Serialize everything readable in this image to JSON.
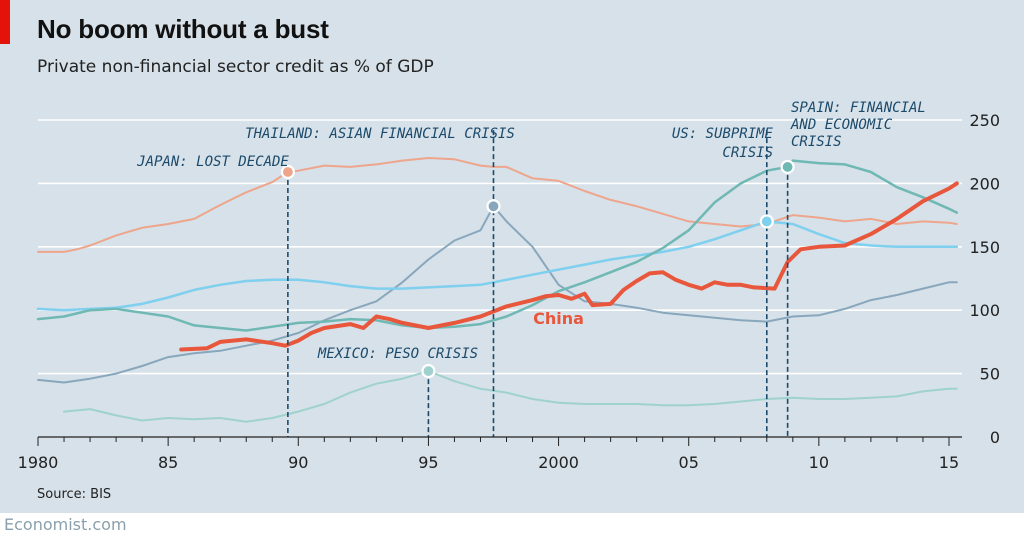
{
  "header": {
    "title": "No boom without a bust",
    "subtitle": "Private non-financial sector credit as % of GDP"
  },
  "footer": {
    "source": "Source: BIS",
    "brand": "Economist.com"
  },
  "colors": {
    "background": "#d6e1e9",
    "accent_red": "#e3120b",
    "china": "#e8563c",
    "japan": "#eea58c",
    "thailand": "#88a7bc",
    "us": "#7fcfee",
    "spain": "#6fb8b4",
    "mexico": "#9fd2ce",
    "annotation": "#1c4a6b",
    "grid": "#ffffff"
  },
  "chart_data": {
    "type": "line",
    "xlim": [
      1980,
      2015.5
    ],
    "ylim": [
      0,
      250
    ],
    "x_ticks": [
      1980,
      1985,
      1990,
      1995,
      2000,
      2005,
      2010,
      2015
    ],
    "x_tick_labels": [
      "1980",
      "85",
      "90",
      "95",
      "2000",
      "05",
      "10",
      "15"
    ],
    "y_ticks": [
      0,
      50,
      100,
      150,
      200,
      250
    ],
    "y_tick_labels": [
      "0",
      "50",
      "100",
      "150",
      "200",
      "250"
    ],
    "y_axis_side": "right",
    "grid": true,
    "series": [
      {
        "name": "China",
        "color_key": "china",
        "width": 4,
        "label": "China",
        "label_at": [
          2000,
          89
        ],
        "points": [
          [
            1985.5,
            69
          ],
          [
            1986.5,
            70
          ],
          [
            1987,
            75
          ],
          [
            1988,
            77
          ],
          [
            1989,
            74
          ],
          [
            1989.5,
            72
          ],
          [
            1990,
            76
          ],
          [
            1990.5,
            82
          ],
          [
            1991,
            86
          ],
          [
            1992,
            89
          ],
          [
            1992.5,
            86
          ],
          [
            1993,
            95
          ],
          [
            1993.5,
            93
          ],
          [
            1994,
            90
          ],
          [
            1995,
            86
          ],
          [
            1996,
            90
          ],
          [
            1997,
            95
          ],
          [
            1998,
            103
          ],
          [
            1999,
            108
          ],
          [
            1999.5,
            111
          ],
          [
            2000,
            112
          ],
          [
            2000.5,
            109
          ],
          [
            2001,
            113
          ],
          [
            2001.3,
            104
          ],
          [
            2002,
            105
          ],
          [
            2002.5,
            116
          ],
          [
            2003,
            123
          ],
          [
            2003.5,
            129
          ],
          [
            2004,
            130
          ],
          [
            2004.5,
            124
          ],
          [
            2005,
            120
          ],
          [
            2005.5,
            117
          ],
          [
            2006,
            122
          ],
          [
            2006.5,
            120
          ],
          [
            2007,
            120
          ],
          [
            2007.5,
            118
          ],
          [
            2008.3,
            117
          ],
          [
            2008.8,
            138
          ],
          [
            2009.3,
            148
          ],
          [
            2010,
            150
          ],
          [
            2011,
            151
          ],
          [
            2012,
            160
          ],
          [
            2013,
            172
          ],
          [
            2014,
            186
          ],
          [
            2015,
            196
          ],
          [
            2015.3,
            200
          ]
        ]
      },
      {
        "name": "Japan",
        "color_key": "japan",
        "width": 2,
        "points": [
          [
            1980,
            146
          ],
          [
            1981,
            146
          ],
          [
            1981.5,
            148
          ],
          [
            1982,
            151
          ],
          [
            1983,
            159
          ],
          [
            1984,
            165
          ],
          [
            1985,
            168
          ],
          [
            1986,
            172
          ],
          [
            1987,
            183
          ],
          [
            1988,
            193
          ],
          [
            1989,
            201
          ],
          [
            1989.6,
            209
          ],
          [
            1990,
            210
          ],
          [
            1991,
            214
          ],
          [
            1992,
            213
          ],
          [
            1993,
            215
          ],
          [
            1994,
            218
          ],
          [
            1995,
            220
          ],
          [
            1996,
            219
          ],
          [
            1997,
            214
          ],
          [
            1997.5,
            213
          ],
          [
            1998,
            213
          ],
          [
            1999,
            204
          ],
          [
            2000,
            202
          ],
          [
            2001,
            194
          ],
          [
            2002,
            187
          ],
          [
            2003,
            182
          ],
          [
            2004,
            176
          ],
          [
            2005,
            170
          ],
          [
            2006,
            168
          ],
          [
            2007,
            166
          ],
          [
            2008,
            168
          ],
          [
            2009,
            175
          ],
          [
            2010,
            173
          ],
          [
            2011,
            170
          ],
          [
            2012,
            172
          ],
          [
            2013,
            168
          ],
          [
            2014,
            170
          ],
          [
            2015,
            169
          ],
          [
            2015.3,
            168
          ]
        ]
      },
      {
        "name": "Thailand",
        "color_key": "thailand",
        "width": 2,
        "points": [
          [
            1980,
            45
          ],
          [
            1981,
            43
          ],
          [
            1982,
            46
          ],
          [
            1983,
            50
          ],
          [
            1984,
            56
          ],
          [
            1985,
            63
          ],
          [
            1986,
            66
          ],
          [
            1987,
            68
          ],
          [
            1988,
            72
          ],
          [
            1989,
            76
          ],
          [
            1990,
            82
          ],
          [
            1991,
            92
          ],
          [
            1992,
            100
          ],
          [
            1993,
            107
          ],
          [
            1994,
            122
          ],
          [
            1995,
            140
          ],
          [
            1996,
            155
          ],
          [
            1997,
            163
          ],
          [
            1997.5,
            182
          ],
          [
            1998,
            170
          ],
          [
            1999,
            150
          ],
          [
            2000,
            120
          ],
          [
            2001,
            107
          ],
          [
            2002,
            105
          ],
          [
            2003,
            102
          ],
          [
            2004,
            98
          ],
          [
            2005,
            96
          ],
          [
            2006,
            94
          ],
          [
            2007,
            92
          ],
          [
            2008,
            91
          ],
          [
            2009,
            95
          ],
          [
            2010,
            96
          ],
          [
            2011,
            101
          ],
          [
            2012,
            108
          ],
          [
            2013,
            112
          ],
          [
            2014,
            117
          ],
          [
            2015,
            122
          ],
          [
            2015.3,
            122
          ]
        ]
      },
      {
        "name": "US",
        "color_key": "us",
        "width": 2.5,
        "points": [
          [
            1980,
            101
          ],
          [
            1981,
            100
          ],
          [
            1982,
            101
          ],
          [
            1983,
            102
          ],
          [
            1984,
            105
          ],
          [
            1985,
            110
          ],
          [
            1986,
            116
          ],
          [
            1987,
            120
          ],
          [
            1988,
            123
          ],
          [
            1989,
            124
          ],
          [
            1990,
            124
          ],
          [
            1991,
            122
          ],
          [
            1992,
            119
          ],
          [
            1993,
            117
          ],
          [
            1994,
            117
          ],
          [
            1995,
            118
          ],
          [
            1996,
            119
          ],
          [
            1997,
            120
          ],
          [
            1998,
            124
          ],
          [
            1999,
            128
          ],
          [
            2000,
            132
          ],
          [
            2001,
            136
          ],
          [
            2002,
            140
          ],
          [
            2003,
            143
          ],
          [
            2004,
            146
          ],
          [
            2005,
            150
          ],
          [
            2006,
            156
          ],
          [
            2007,
            163
          ],
          [
            2008,
            170
          ],
          [
            2009,
            168
          ],
          [
            2010,
            160
          ],
          [
            2011,
            153
          ],
          [
            2012,
            151
          ],
          [
            2013,
            150
          ],
          [
            2014,
            150
          ],
          [
            2015,
            150
          ],
          [
            2015.3,
            150
          ]
        ]
      },
      {
        "name": "Spain",
        "color_key": "spain",
        "width": 2.5,
        "points": [
          [
            1980,
            93
          ],
          [
            1981,
            95
          ],
          [
            1982,
            100
          ],
          [
            1983,
            101
          ],
          [
            1984,
            98
          ],
          [
            1985,
            95
          ],
          [
            1986,
            88
          ],
          [
            1987,
            86
          ],
          [
            1988,
            84
          ],
          [
            1989,
            87
          ],
          [
            1990,
            90
          ],
          [
            1991,
            91
          ],
          [
            1992,
            93
          ],
          [
            1993,
            92
          ],
          [
            1994,
            88
          ],
          [
            1995,
            86
          ],
          [
            1996,
            87
          ],
          [
            1997,
            89
          ],
          [
            1998,
            95
          ],
          [
            1999,
            104
          ],
          [
            2000,
            115
          ],
          [
            2001,
            122
          ],
          [
            2002,
            130
          ],
          [
            2003,
            138
          ],
          [
            2004,
            149
          ],
          [
            2005,
            163
          ],
          [
            2006,
            185
          ],
          [
            2007,
            200
          ],
          [
            2008,
            210
          ],
          [
            2008.8,
            213
          ],
          [
            2009,
            218
          ],
          [
            2010,
            216
          ],
          [
            2011,
            215
          ],
          [
            2012,
            209
          ],
          [
            2013,
            197
          ],
          [
            2014,
            189
          ],
          [
            2015,
            180
          ],
          [
            2015.3,
            177
          ]
        ]
      },
      {
        "name": "Mexico",
        "color_key": "mexico",
        "width": 2,
        "points": [
          [
            1981,
            20
          ],
          [
            1982,
            22
          ],
          [
            1983,
            17
          ],
          [
            1984,
            13
          ],
          [
            1985,
            15
          ],
          [
            1986,
            14
          ],
          [
            1987,
            15
          ],
          [
            1988,
            12
          ],
          [
            1989,
            15
          ],
          [
            1990,
            20
          ],
          [
            1991,
            26
          ],
          [
            1992,
            35
          ],
          [
            1993,
            42
          ],
          [
            1994,
            46
          ],
          [
            1995,
            52
          ],
          [
            1996,
            44
          ],
          [
            1997,
            38
          ],
          [
            1998,
            35
          ],
          [
            1999,
            30
          ],
          [
            2000,
            27
          ],
          [
            2001,
            26
          ],
          [
            2002,
            26
          ],
          [
            2003,
            26
          ],
          [
            2004,
            25
          ],
          [
            2005,
            25
          ],
          [
            2006,
            26
          ],
          [
            2007,
            28
          ],
          [
            2008,
            30
          ],
          [
            2009,
            31
          ],
          [
            2010,
            30
          ],
          [
            2011,
            30
          ],
          [
            2012,
            31
          ],
          [
            2013,
            32
          ],
          [
            2014,
            36
          ],
          [
            2015,
            38
          ],
          [
            2015.3,
            38
          ]
        ]
      }
    ],
    "events": [
      {
        "label": "JAPAN: LOST DECADE",
        "x": 1989.6,
        "y": 209,
        "dot_color_key": "japan",
        "line_from_y": 209
      },
      {
        "label": "THAILAND: ASIAN FINANCIAL CRISIS",
        "x": 1997.5,
        "y": 182,
        "dot_color_key": "thailand",
        "line_from_y": 242
      },
      {
        "label": "MEXICO: PESO CRISIS",
        "x": 1995,
        "y": 52,
        "dot_color_key": "mexico",
        "line_from_y": 52
      },
      {
        "label": "US: SUBPRIME CRISIS",
        "label_lines": [
          "US: SUBPRIME",
          "CRISIS"
        ],
        "x": 2008,
        "y": 170,
        "dot_color_key": "us",
        "line_from_y": 242
      },
      {
        "label": "SPAIN: FINANCIAL AND ECONOMIC CRISIS",
        "label_lines": [
          "SPAIN: FINANCIAL",
          "AND ECONOMIC",
          "CRISIS"
        ],
        "x": 2008.8,
        "y": 213,
        "dot_color_key": "spain",
        "line_from_y": 213
      }
    ]
  }
}
